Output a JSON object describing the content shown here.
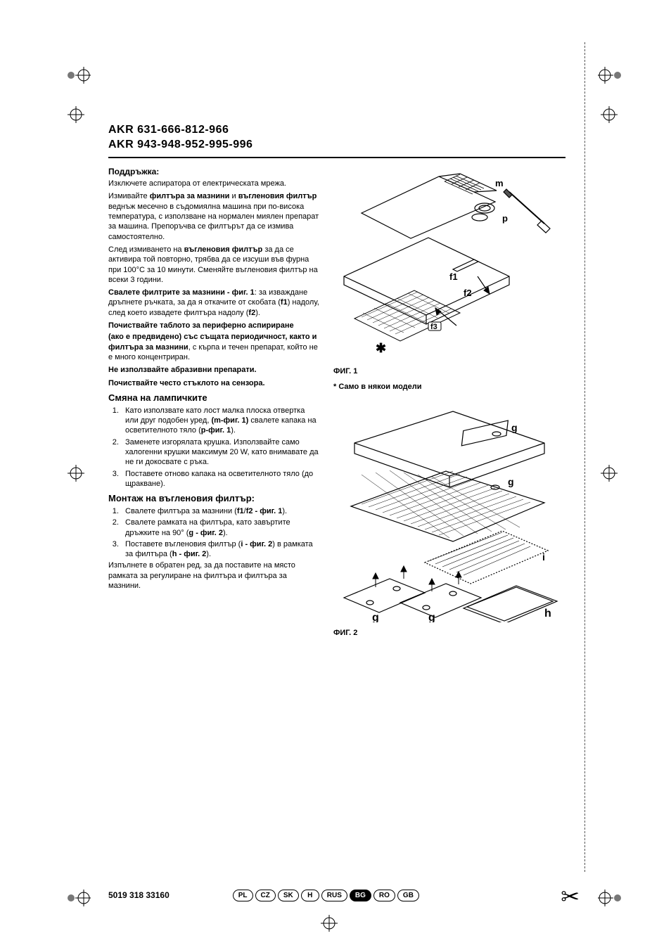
{
  "title": {
    "line1": "AKR 631-666-812-966",
    "line2": "AKR 943-948-952-995-996"
  },
  "maintenance": {
    "heading": "Поддръжка:",
    "p1": "Изключете аспиратора от електрическата мрежа.",
    "p2_pre": "Измивайте ",
    "p2_b1": "филтъра за мазнини",
    "p2_mid": " и ",
    "p2_b2": "въгленовия филтър",
    "p2_post": " веднъж месечно в съдомиялна машина при по-висока температура, с използване на нормален миялен препарат за машина. Препоръчва се филтърът да се измива самостоятелно.",
    "p3_pre": "След измиването на ",
    "p3_b": "въгленовия филтър",
    "p3_post": " за да се активира той повторно, трябва да се изсуши във фурна при 100°C за 10 минути. Сменяйте въгленовия филтър на всеки 3 години.",
    "p4_b": "Свалете филтрите за мазнини - фиг. 1",
    "p4_post1": ": за изваждане дръпнете ръчката, за да я откачите от скобата (",
    "p4_f1": "f1",
    "p4_post2": ") надолу, след което извадете филтъра надолу (",
    "p4_f2": "f2",
    "p4_post3": ").",
    "p5_b": "Почиствайте таблото за периферно аспириране",
    "p6_b": "(ако е предвидено) със същата периодичност, както и филтъра за мазнини",
    "p6_post": ", с кърпа и течен препарат, който не е много концентриран.",
    "p7_b": "Не използвайте абразивни препарати.",
    "p8_b": "Почиствайте често стъклото на сензора."
  },
  "lamps": {
    "heading": "Смяна на лампичките",
    "items": [
      {
        "pre": "Като използвате като лост малка плоска отвертка или друг подобен уред, ",
        "b1": "(m-фиг. 1)",
        "mid": " свалете капака на осветителното тяло (",
        "b2": "p-фиг. 1",
        "post": ")."
      },
      {
        "text": "Заменете изгорялата крушка. Използвайте само халогенни крушки максимум 20 W, като внимавате да не ги докосвате с ръка."
      },
      {
        "text": "Поставете отново капака на осветителното тяло (до щракване)."
      }
    ]
  },
  "filter": {
    "heading": "Монтаж на въгленовия филтър:",
    "items": [
      {
        "pre": "Свалете филтъра за мазнини (",
        "b": "f1",
        "mid1": "/",
        "b2": "f2 - фиг. 1",
        "post": ")."
      },
      {
        "pre": "Свалете рамката на филтъра, като завъртите дръжките на 90° (",
        "b": "g - фиг. 2",
        "post": ")."
      },
      {
        "pre": "Поставете въгленовия филтър (",
        "b": "i - фиг. 2",
        "mid": ") в рамката за филтъра (",
        "b2": "h - фиг. 2",
        "post": ")."
      }
    ],
    "p_after": "Изпълнете в обратен ред, за да поставите на място рамката за регулиране на филтъра и филтъра за мазнини."
  },
  "figures": {
    "fig1_caption": "ФИГ. 1",
    "fig1_note": "* Само в някои модели",
    "fig2_caption": "ФИГ. 2",
    "labels": {
      "m": "m",
      "p": "p",
      "f1": "f1",
      "f2": "f2",
      "f3": "f3",
      "star": "✱",
      "g": "g",
      "i": "i",
      "h": "h"
    }
  },
  "footer": {
    "code": "5019 318 33160",
    "langs": [
      "PL",
      "CZ",
      "SK",
      "H",
      "RUS",
      "BG",
      "RO",
      "GB"
    ],
    "active_lang": "BG"
  },
  "style": {
    "page_bg": "#ffffff",
    "text_color": "#000000",
    "line_color": "#000000",
    "dash_color": "#555555",
    "body_fontsize": 11,
    "title_fontsize": 16,
    "h2_fontsize": 13,
    "caption_fontsize": 11,
    "pill_fontsize": 10
  }
}
